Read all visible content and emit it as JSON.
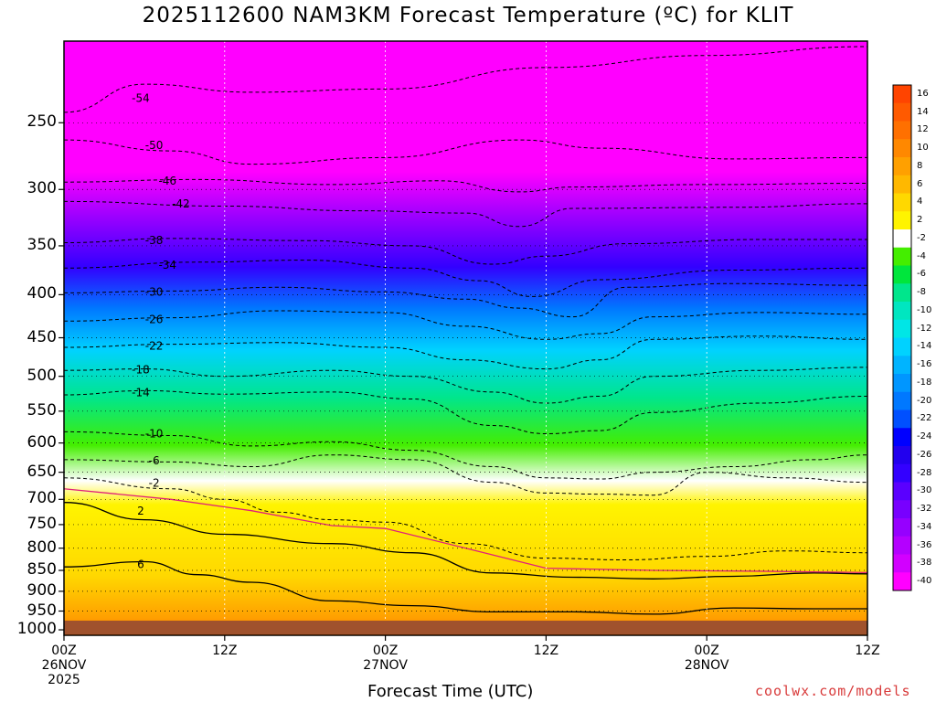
{
  "chart_data": {
    "type": "heatmap",
    "title": "2025112600 NAM3KM Forecast Temperature (ºC) for KLIT",
    "xlabel": "Forecast Time (UTC)",
    "ylabel": "",
    "credit": "coolwx.com/models",
    "y_ticks": [
      "250",
      "300",
      "350",
      "400",
      "450",
      "500",
      "550",
      "600",
      "650",
      "700",
      "750",
      "800",
      "850",
      "900",
      "950",
      "1000"
    ],
    "y_tick_values": [
      250,
      300,
      350,
      400,
      450,
      500,
      550,
      600,
      650,
      700,
      750,
      800,
      850,
      900,
      950,
      1000
    ],
    "ylim": [
      200,
      1015
    ],
    "x_ticks": [
      {
        "l1": "00Z",
        "l2": "26NOV",
        "l3": "2025",
        "h": 0
      },
      {
        "l1": "12Z",
        "l2": "",
        "l3": "",
        "h": 12
      },
      {
        "l1": "00Z",
        "l2": "27NOV",
        "l3": "",
        "h": 24
      },
      {
        "l1": "12Z",
        "l2": "",
        "l3": "",
        "h": 36
      },
      {
        "l1": "00Z",
        "l2": "28NOV",
        "l3": "",
        "h": 48
      },
      {
        "l1": "12Z",
        "l2": "",
        "l3": "",
        "h": 60
      }
    ],
    "xlim_hours": [
      0,
      60
    ],
    "colorbar_labels": [
      "16",
      "14",
      "12",
      "10",
      "8",
      "6",
      "4",
      "2",
      "-2",
      "-4",
      "-6",
      "-8",
      "-10",
      "-12",
      "-14",
      "-16",
      "-18",
      "-20",
      "-22",
      "-24",
      "-26",
      "-28",
      "-30",
      "-32",
      "-34",
      "-36",
      "-38",
      "-40"
    ],
    "colorbar_colors": [
      "#ff4400",
      "#ff5a00",
      "#ff7000",
      "#ff8800",
      "#ffa000",
      "#ffb800",
      "#ffd800",
      "#fff400",
      "#ffffff",
      "#44ee00",
      "#00e63c",
      "#00e68c",
      "#00e6c0",
      "#00e6e6",
      "#00d2ff",
      "#00b4ff",
      "#0096ff",
      "#0078ff",
      "#0050ff",
      "#0000ff",
      "#2200ee",
      "#3300ff",
      "#5a00ff",
      "#7800ff",
      "#9600ff",
      "#b400ff",
      "#d200ff",
      "#ff00ff"
    ],
    "isotherms": [
      {
        "label": "-54",
        "p": [
          [
            0,
            243
          ],
          [
            6,
            225
          ],
          [
            14,
            230
          ],
          [
            24,
            228
          ],
          [
            36,
            215
          ],
          [
            48,
            208
          ],
          [
            60,
            203
          ]
        ]
      },
      {
        "label": "-50",
        "p": [
          [
            0,
            262
          ],
          [
            8,
            270
          ],
          [
            14,
            280
          ],
          [
            24,
            275
          ],
          [
            34,
            262
          ],
          [
            40,
            268
          ],
          [
            50,
            276
          ],
          [
            60,
            275
          ]
        ]
      },
      {
        "label": "-46",
        "p": [
          [
            0,
            294
          ],
          [
            10,
            292
          ],
          [
            20,
            296
          ],
          [
            28,
            293
          ],
          [
            34,
            302
          ],
          [
            38,
            298
          ],
          [
            48,
            296
          ],
          [
            60,
            295
          ]
        ]
      },
      {
        "label": "-42",
        "p": [
          [
            0,
            310
          ],
          [
            12,
            314
          ],
          [
            22,
            318
          ],
          [
            30,
            320
          ],
          [
            34,
            332
          ],
          [
            38,
            316
          ],
          [
            50,
            315
          ],
          [
            60,
            312
          ]
        ]
      },
      {
        "label": "-38",
        "p": [
          [
            0,
            347
          ],
          [
            8,
            343
          ],
          [
            18,
            345
          ],
          [
            26,
            350
          ],
          [
            32,
            368
          ],
          [
            36,
            360
          ],
          [
            42,
            348
          ],
          [
            52,
            344
          ],
          [
            60,
            344
          ]
        ]
      },
      {
        "label": "-34",
        "p": [
          [
            0,
            372
          ],
          [
            10,
            366
          ],
          [
            18,
            364
          ],
          [
            26,
            372
          ],
          [
            31,
            385
          ],
          [
            35,
            402
          ],
          [
            40,
            384
          ],
          [
            50,
            374
          ],
          [
            60,
            372
          ]
        ]
      },
      {
        "label": "-30",
        "p": [
          [
            0,
            398
          ],
          [
            8,
            396
          ],
          [
            16,
            392
          ],
          [
            24,
            397
          ],
          [
            30,
            405
          ],
          [
            34,
            415
          ],
          [
            38,
            425
          ],
          [
            42,
            392
          ],
          [
            50,
            388
          ],
          [
            60,
            390
          ]
        ]
      },
      {
        "label": "-26",
        "p": [
          [
            0,
            430
          ],
          [
            8,
            426
          ],
          [
            16,
            418
          ],
          [
            24,
            420
          ],
          [
            30,
            436
          ],
          [
            36,
            452
          ],
          [
            40,
            445
          ],
          [
            44,
            425
          ],
          [
            52,
            420
          ],
          [
            60,
            422
          ]
        ]
      },
      {
        "label": "-22",
        "p": [
          [
            0,
            462
          ],
          [
            8,
            458
          ],
          [
            16,
            456
          ],
          [
            24,
            462
          ],
          [
            30,
            478
          ],
          [
            36,
            490
          ],
          [
            40,
            478
          ],
          [
            44,
            452
          ],
          [
            52,
            448
          ],
          [
            60,
            452
          ]
        ]
      },
      {
        "label": "-18",
        "p": [
          [
            0,
            492
          ],
          [
            6,
            490
          ],
          [
            12,
            500
          ],
          [
            20,
            492
          ],
          [
            26,
            500
          ],
          [
            32,
            522
          ],
          [
            36,
            538
          ],
          [
            40,
            528
          ],
          [
            44,
            500
          ],
          [
            52,
            492
          ],
          [
            60,
            488
          ]
        ]
      },
      {
        "label": "-14",
        "p": [
          [
            0,
            526
          ],
          [
            6,
            520
          ],
          [
            12,
            525
          ],
          [
            20,
            522
          ],
          [
            26,
            532
          ],
          [
            32,
            572
          ],
          [
            36,
            585
          ],
          [
            40,
            580
          ],
          [
            44,
            552
          ],
          [
            52,
            538
          ],
          [
            60,
            528
          ]
        ]
      },
      {
        "label": "-10",
        "p": [
          [
            0,
            582
          ],
          [
            8,
            588
          ],
          [
            14,
            605
          ],
          [
            20,
            598
          ],
          [
            26,
            612
          ],
          [
            32,
            640
          ],
          [
            36,
            660
          ],
          [
            40,
            662
          ],
          [
            44,
            650
          ],
          [
            50,
            640
          ],
          [
            56,
            628
          ],
          [
            60,
            620
          ]
        ]
      },
      {
        "label": "-6",
        "p": [
          [
            0,
            628
          ],
          [
            8,
            632
          ],
          [
            14,
            640
          ],
          [
            20,
            620
          ],
          [
            26,
            628
          ],
          [
            32,
            668
          ],
          [
            36,
            688
          ],
          [
            40,
            690
          ],
          [
            44,
            692
          ],
          [
            48,
            650
          ],
          [
            54,
            660
          ],
          [
            60,
            668
          ]
        ]
      },
      {
        "label": "-2",
        "p": [
          [
            0,
            660
          ],
          [
            8,
            680
          ],
          [
            12,
            700
          ],
          [
            16,
            725
          ],
          [
            20,
            740
          ],
          [
            24,
            745
          ],
          [
            30,
            790
          ],
          [
            36,
            822
          ],
          [
            42,
            826
          ],
          [
            48,
            818
          ],
          [
            54,
            806
          ],
          [
            60,
            810
          ]
        ]
      },
      {
        "label": "2",
        "p": [
          [
            0,
            706
          ],
          [
            6,
            740
          ],
          [
            12,
            770
          ],
          [
            20,
            790
          ],
          [
            26,
            810
          ],
          [
            32,
            856
          ],
          [
            38,
            866
          ],
          [
            44,
            870
          ],
          [
            50,
            864
          ],
          [
            56,
            856
          ],
          [
            60,
            858
          ]
        ]
      },
      {
        "label": "6",
        "p": [
          [
            0,
            842
          ],
          [
            6,
            830
          ],
          [
            10,
            860
          ],
          [
            14,
            878
          ],
          [
            20,
            924
          ],
          [
            26,
            936
          ],
          [
            32,
            952
          ],
          [
            38,
            952
          ],
          [
            44,
            958
          ],
          [
            50,
            942
          ],
          [
            56,
            944
          ],
          [
            60,
            944
          ]
        ]
      }
    ],
    "grid": true,
    "legend_placement": "right-colorbar"
  }
}
